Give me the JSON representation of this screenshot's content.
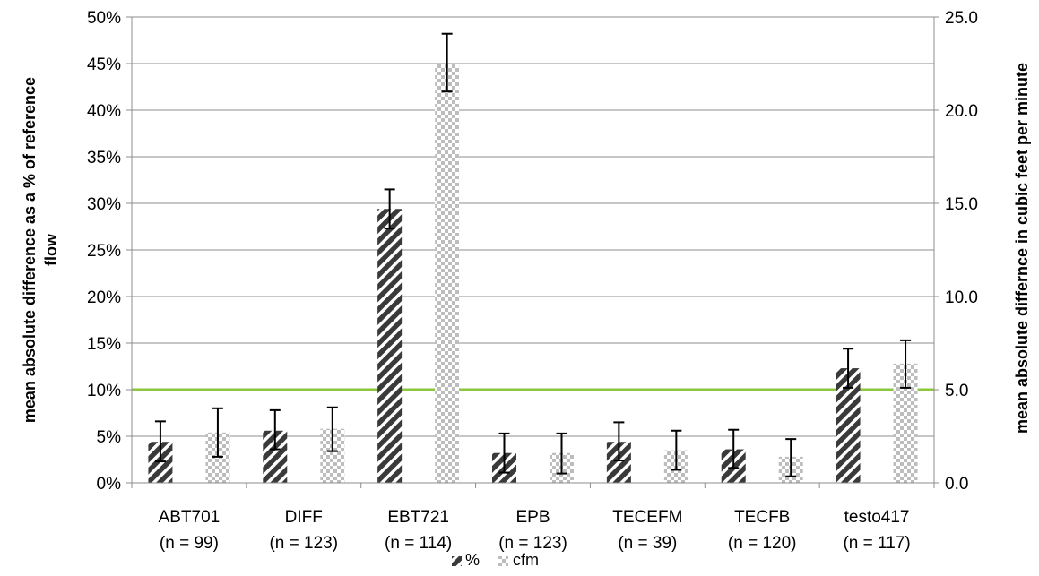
{
  "chart_data": {
    "type": "bar",
    "categories": [
      "ABT701",
      "DIFF",
      "EBT721",
      "EPB",
      "TECEFM",
      "TECFB",
      "testo417"
    ],
    "category_sublabels": [
      "(n = 99)",
      "(n = 123)",
      "(n = 114)",
      "(n = 123)",
      "(n = 39)",
      "(n = 120)",
      "(n = 117)"
    ],
    "series": [
      {
        "name": "%",
        "axis": "left",
        "pattern": "diagonal-stripes",
        "color": "#3a3a3a",
        "values": [
          4.4,
          5.6,
          29.4,
          3.2,
          4.4,
          3.6,
          12.3
        ],
        "err_low": [
          2.3,
          3.6,
          27.3,
          1.1,
          2.4,
          1.6,
          10.2
        ],
        "err_high": [
          6.6,
          7.8,
          31.5,
          5.3,
          6.5,
          5.7,
          14.4
        ]
      },
      {
        "name": "cfm",
        "axis": "right",
        "pattern": "checkerboard",
        "color": "#bdbdbd",
        "values": [
          2.7,
          2.9,
          22.5,
          1.6,
          1.75,
          1.4,
          6.4
        ],
        "err_low": [
          1.4,
          1.7,
          21.0,
          0.5,
          0.7,
          0.35,
          5.1
        ],
        "err_high": [
          4.0,
          4.05,
          24.1,
          2.65,
          2.8,
          2.35,
          7.65
        ]
      }
    ],
    "reference_line": {
      "value": 10,
      "axis": "left",
      "color": "#8dc63f"
    },
    "left_axis": {
      "label": "mean absolute difference as a % of reference flow",
      "label_lines": [
        "mean absolute difference as a % of reference",
        "flow"
      ],
      "ylim": [
        0,
        50
      ],
      "ticks": [
        0,
        5,
        10,
        15,
        20,
        25,
        30,
        35,
        40,
        45,
        50
      ],
      "tick_labels": [
        "0%",
        "5%",
        "10%",
        "15%",
        "20%",
        "25%",
        "30%",
        "35%",
        "40%",
        "45%",
        "50%"
      ]
    },
    "right_axis": {
      "label": "mean absolute differnce in cubic feet per minute",
      "ylim": [
        0,
        25
      ],
      "ticks": [
        0,
        5,
        10,
        15,
        20,
        25
      ],
      "tick_labels": [
        "0.0",
        "5.0",
        "10.0",
        "15.0",
        "20.0",
        "25.0"
      ]
    },
    "grid": true,
    "grid_color": "#8c8c8c",
    "legend_position": "bottom",
    "legend": [
      "%",
      "cfm"
    ]
  }
}
